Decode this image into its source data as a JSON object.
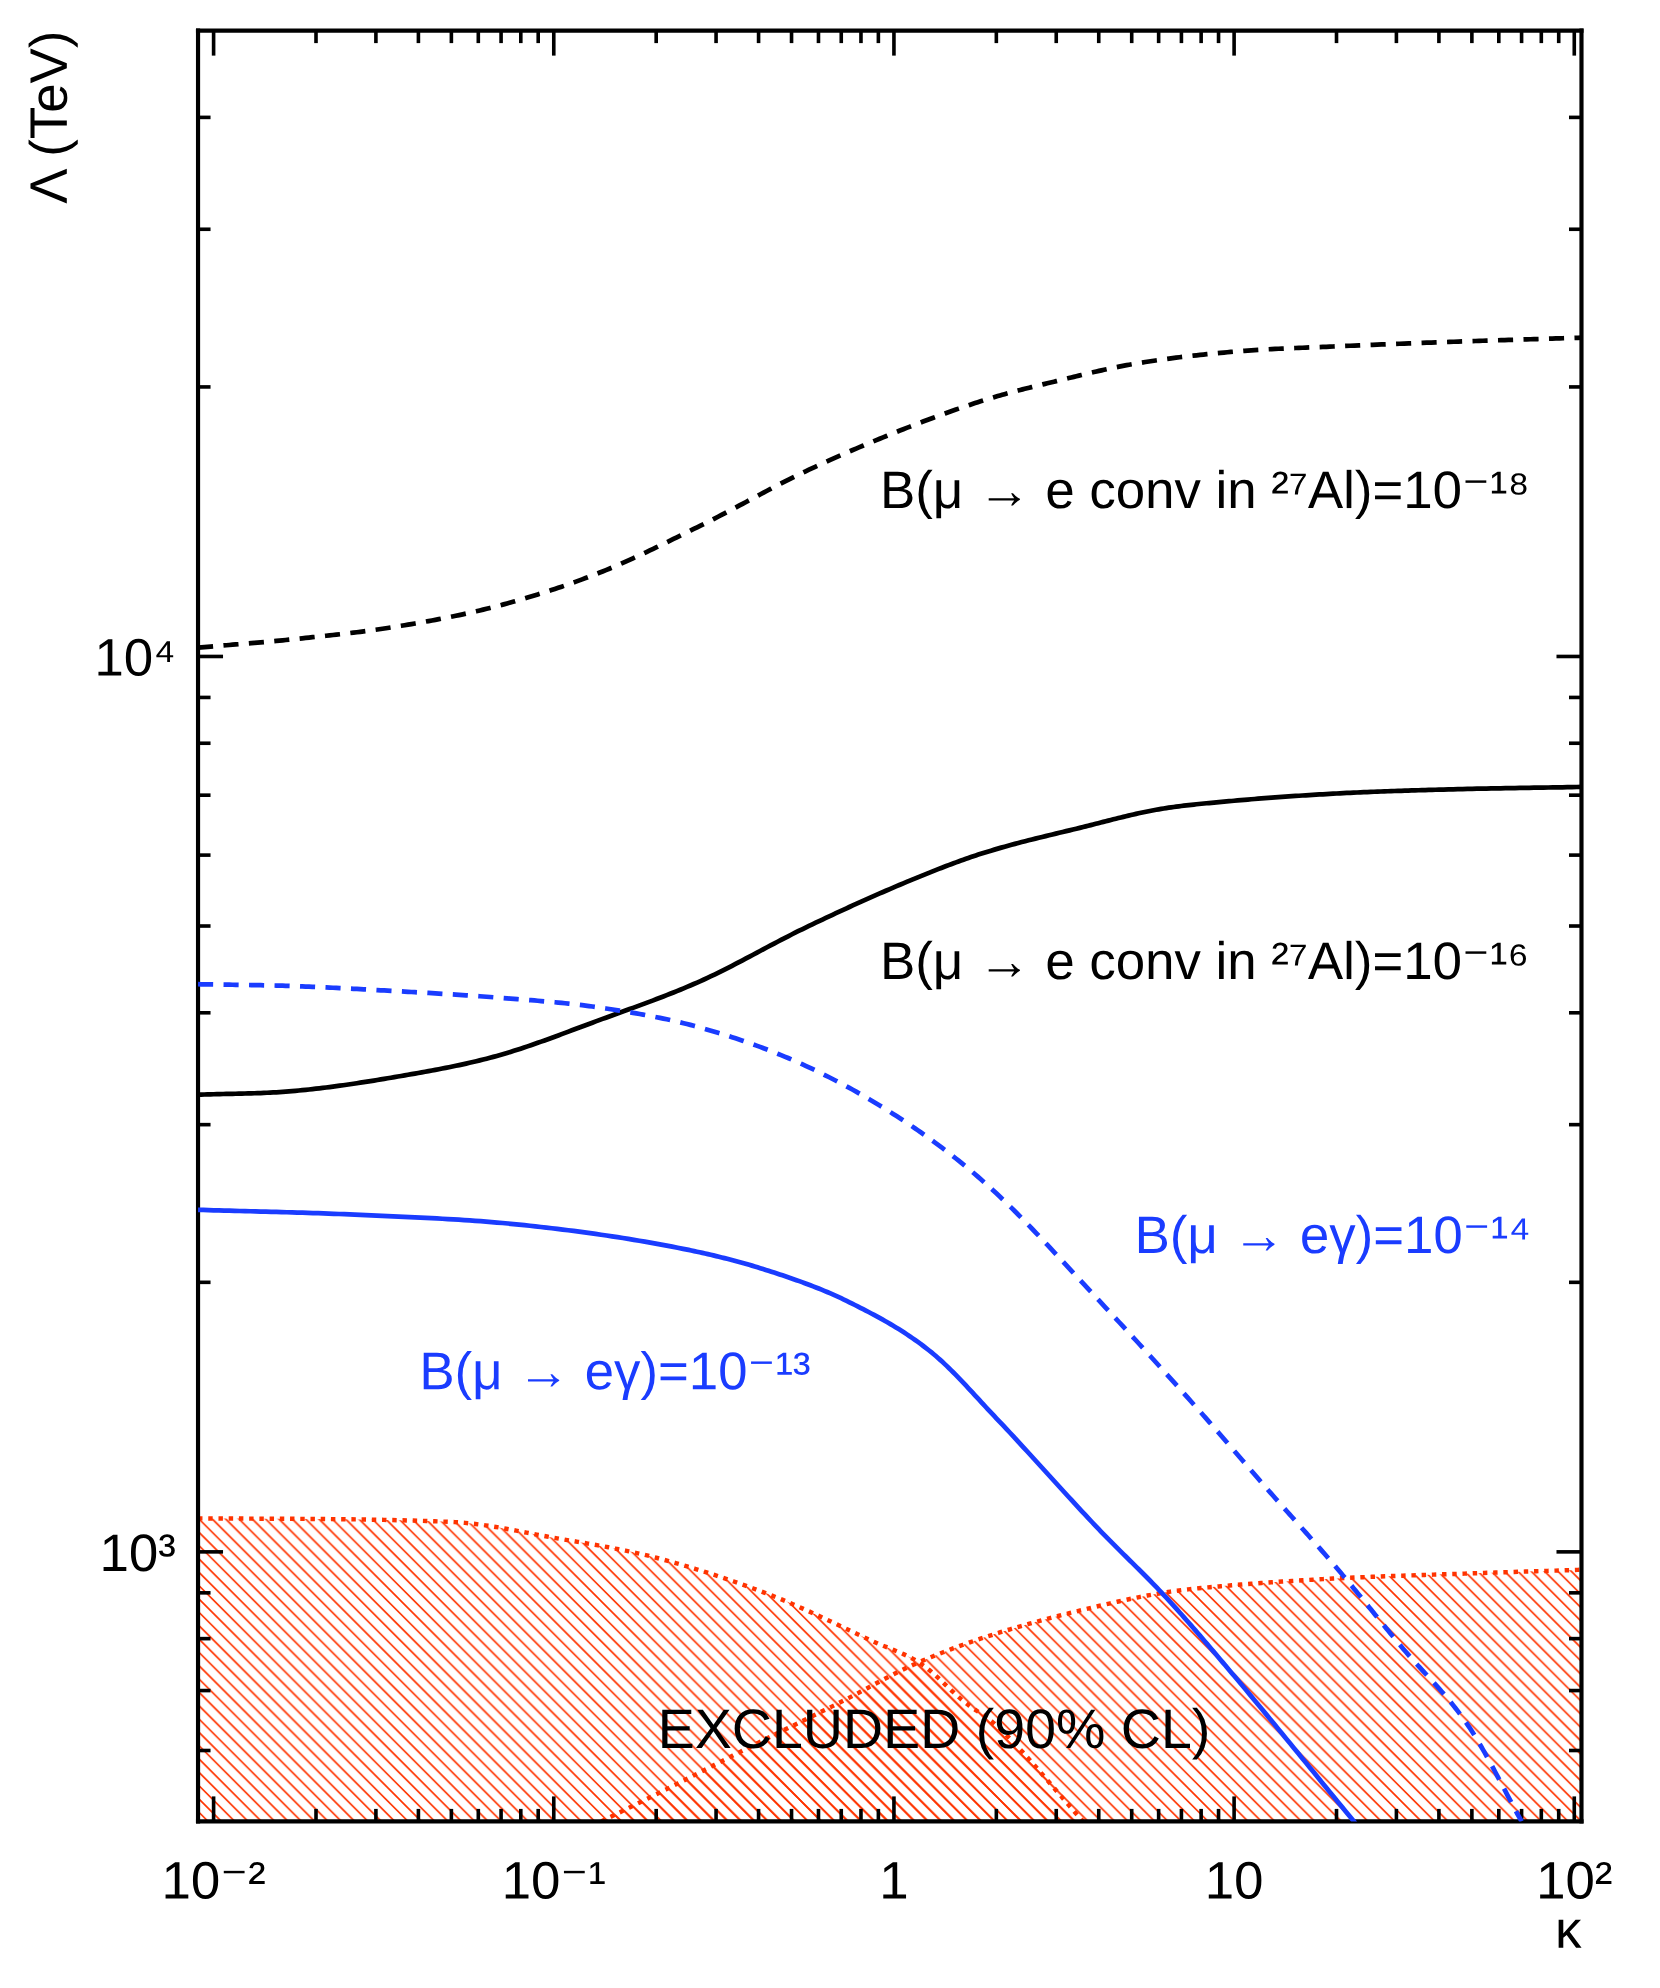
{
  "chart_data": {
    "type": "line",
    "xlabel": "κ",
    "ylabel": "Λ (TeV)",
    "log": "xy",
    "xlim": [
      0.009,
      105
    ],
    "ylim": [
      500,
      50000
    ],
    "xticks": [
      {
        "value": 0.01,
        "label": "10⁻²"
      },
      {
        "value": 0.02,
        "label": null
      },
      {
        "value": 0.03,
        "label": null
      },
      {
        "value": 0.04,
        "label": null
      },
      {
        "value": 0.05,
        "label": null
      },
      {
        "value": 0.06,
        "label": null
      },
      {
        "value": 0.07,
        "label": null
      },
      {
        "value": 0.08,
        "label": null
      },
      {
        "value": 0.09,
        "label": null
      },
      {
        "value": 0.1,
        "label": "10⁻¹"
      },
      {
        "value": 0.2,
        "label": null
      },
      {
        "value": 0.3,
        "label": null
      },
      {
        "value": 0.4,
        "label": null
      },
      {
        "value": 0.5,
        "label": null
      },
      {
        "value": 0.6,
        "label": null
      },
      {
        "value": 0.7,
        "label": null
      },
      {
        "value": 0.8,
        "label": null
      },
      {
        "value": 0.9,
        "label": null
      },
      1,
      {
        "value": 2,
        "label": null
      },
      {
        "value": 3,
        "label": null
      },
      {
        "value": 4,
        "label": null
      },
      {
        "value": 5,
        "label": null
      },
      {
        "value": 6,
        "label": null
      },
      {
        "value": 7,
        "label": null
      },
      {
        "value": 8,
        "label": null
      },
      {
        "value": 9,
        "label": null
      },
      10,
      {
        "value": 20,
        "label": null
      },
      {
        "value": 30,
        "label": null
      },
      {
        "value": 40,
        "label": null
      },
      {
        "value": 50,
        "label": null
      },
      {
        "value": 60,
        "label": null
      },
      {
        "value": 70,
        "label": null
      },
      {
        "value": 80,
        "label": null
      },
      {
        "value": 90,
        "label": null
      },
      {
        "value": 100,
        "label": "10²"
      }
    ],
    "yticks": [
      {
        "value": 600,
        "label": null
      },
      {
        "value": 700,
        "label": null
      },
      {
        "value": 800,
        "label": null
      },
      {
        "value": 900,
        "label": null
      },
      {
        "value": 1000,
        "label": "10³"
      },
      {
        "value": 2000,
        "label": null
      },
      {
        "value": 3000,
        "label": null
      },
      {
        "value": 4000,
        "label": null
      },
      {
        "value": 5000,
        "label": null
      },
      {
        "value": 6000,
        "label": null
      },
      {
        "value": 7000,
        "label": null
      },
      {
        "value": 8000,
        "label": null
      },
      {
        "value": 9000,
        "label": null
      },
      {
        "value": 10000,
        "label": "10⁴"
      },
      {
        "value": 20000,
        "label": null
      },
      {
        "value": 30000,
        "label": null
      },
      {
        "value": 40000,
        "label": null
      }
    ],
    "annotations": [
      "EXCLUDED (90% CL)"
    ],
    "series": [
      {
        "name": "B(μ → e conv in ²⁷Al)=10⁻¹⁸",
        "color": "#000000",
        "line_style": "dashed",
        "x": [
          0.009,
          0.017,
          0.034,
          0.068,
          0.136,
          0.27,
          0.55,
          1.09,
          1.9,
          3,
          5,
          10,
          20,
          50,
          105
        ],
        "values": [
          10230,
          10450,
          10790,
          11380,
          12400,
          14000,
          16100,
          18000,
          19400,
          20300,
          21200,
          21900,
          22200,
          22500,
          22700
        ]
      },
      {
        "name": "B(μ → e conv in ²⁷Al)=10⁻¹⁶",
        "color": "#000000",
        "line_style": "solid",
        "x": [
          0.009,
          0.017,
          0.034,
          0.068,
          0.136,
          0.27,
          0.55,
          1.09,
          1.8,
          3.6,
          6,
          10,
          20,
          40,
          105
        ],
        "values": [
          3240,
          3270,
          3390,
          3580,
          3925,
          4340,
          4980,
          5600,
          6020,
          6450,
          6750,
          6900,
          7030,
          7100,
          7150
        ]
      },
      {
        "name": "B(μ → eγ)=10⁻¹⁴",
        "color": "#1a3cff",
        "line_style": "dashed",
        "x": [
          0.009,
          0.017,
          0.034,
          0.068,
          0.136,
          0.27,
          0.55,
          1.09,
          1.9,
          4,
          8,
          12.4,
          20,
          31,
          49,
          70
        ],
        "values": [
          4305,
          4285,
          4230,
          4160,
          4055,
          3850,
          3490,
          3015,
          2560,
          1910,
          1430,
          1180,
          960,
          784,
          638,
          500
        ]
      },
      {
        "name": "B(μ → eγ)=10⁻¹³",
        "color": "#1a3cff",
        "line_style": "solid",
        "x": [
          0.009,
          0.026,
          0.079,
          0.24,
          0.42,
          0.74,
          1.29,
          2,
          4,
          6.3,
          10,
          22.5
        ],
        "values": [
          2410,
          2380,
          2320,
          2180,
          2065,
          1900,
          1670,
          1410,
          1060,
          890,
          727,
          500
        ]
      },
      {
        "type": "area",
        "color": "#ff3300",
        "line_style": "dotted",
        "x": [
          0.009,
          0.05,
          0.1,
          0.2,
          0.44,
          0.87,
          1.2,
          1.61,
          2,
          3.6
        ],
        "values": [
          1090,
          1080,
          1037,
          985,
          893,
          794,
          750,
          680,
          640,
          500
        ]
      },
      {
        "type": "area",
        "color": "#ff3300",
        "line_style": "dotted",
        "x": [
          0.138,
          0.2,
          0.42,
          0.7,
          1.14,
          1.89,
          4,
          6.4,
          10,
          20,
          49,
          105
        ],
        "values": [
          500,
          536,
          618,
          680,
          748,
          805,
          870,
          902,
          918,
          934,
          946,
          955
        ]
      }
    ]
  }
}
